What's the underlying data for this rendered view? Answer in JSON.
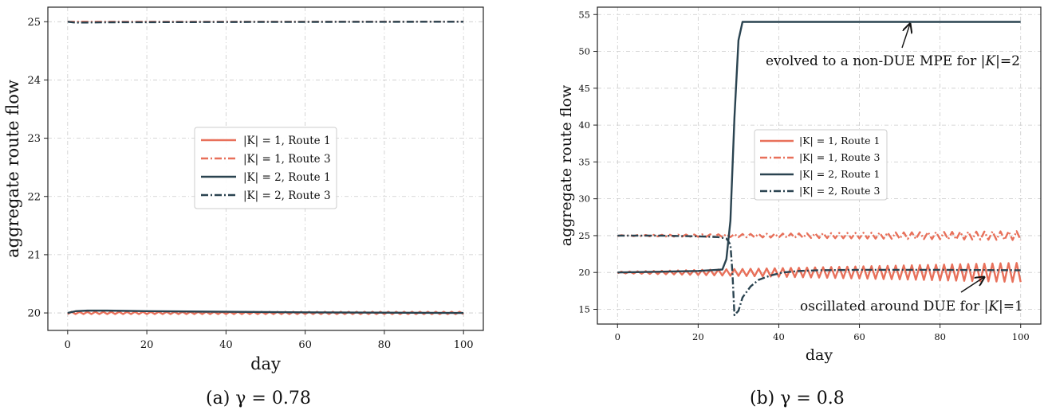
{
  "colors": {
    "orange": "#E8705A",
    "dark": "#2A4350",
    "grid": "#c9c9c9",
    "axis": "#222222"
  },
  "chart_data": [
    {
      "type": "line",
      "caption": "(a) γ = 0.78",
      "xlabel": "day",
      "ylabel": "aggregate route flow",
      "xlim": [
        -5,
        105
      ],
      "ylim": [
        19.7,
        25.25
      ],
      "xticks": [
        "0",
        "20",
        "40",
        "60",
        "80",
        "100"
      ],
      "yticks": [
        "20",
        "21",
        "22",
        "23",
        "24",
        "25"
      ],
      "grid": true,
      "legend_position": "center",
      "series": [
        {
          "name": "|K| = 1, Route 1",
          "color": "orange",
          "style": "solid",
          "summary": "oscillates tightly around 20.0 (amplitude ~0.02) for days 0–100",
          "base": 20.0,
          "amplitude": 0.02
        },
        {
          "name": "|K| = 1, Route 3",
          "color": "orange",
          "style": "dashdot",
          "summary": "flat at 25.0 for days 0–100",
          "base": 25.0,
          "amplitude": 0.0
        },
        {
          "name": "|K| = 2, Route 1",
          "color": "dark",
          "style": "solid",
          "x": [
            0,
            2,
            5,
            10,
            20,
            40,
            60,
            80,
            100
          ],
          "y": [
            20.0,
            20.03,
            20.04,
            20.04,
            20.03,
            20.02,
            20.01,
            20.005,
            20.0
          ]
        },
        {
          "name": "|K| = 2, Route 3",
          "color": "dark",
          "style": "dashdot",
          "x": [
            0,
            2,
            10,
            40,
            100
          ],
          "y": [
            25.0,
            24.985,
            24.99,
            24.995,
            25.0
          ]
        }
      ]
    },
    {
      "type": "line",
      "caption": "(b) γ = 0.8",
      "xlabel": "day",
      "ylabel": "aggregate route flow",
      "xlim": [
        -5,
        105
      ],
      "ylim": [
        13,
        56
      ],
      "xticks": [
        "0",
        "20",
        "40",
        "60",
        "80",
        "100"
      ],
      "yticks": [
        "15",
        "20",
        "25",
        "30",
        "35",
        "40",
        "45",
        "50",
        "55"
      ],
      "grid": true,
      "legend_position": "center-left",
      "annotations": [
        {
          "text_prefix": "evolved to a non-DUE MPE for |",
          "text_italic": "K",
          "text_suffix": "|=2",
          "arrow_to": [
            72,
            54
          ]
        },
        {
          "text_prefix": "oscillated around DUE for |",
          "text_italic": "K",
          "text_suffix": "|=1",
          "arrow_to": [
            91,
            19.5
          ]
        }
      ],
      "series": [
        {
          "name": "|K| = 1, Route 1",
          "color": "orange",
          "style": "solid",
          "summary": "oscillates around 20 with amplitude growing from ~0.1 at day 0 to ~1.3 at day 100",
          "base": 20.0,
          "amp_start": 0.1,
          "amp_end": 1.3
        },
        {
          "name": "|K| = 1, Route 3",
          "color": "orange",
          "style": "dashdot",
          "summary": "oscillates around 25 with amplitude growing from ~0.05 to ~0.6",
          "base": 25.0,
          "amp_start": 0.05,
          "amp_end": 0.6
        },
        {
          "name": "|K| = 2, Route 1",
          "color": "dark",
          "style": "solid",
          "x": [
            0,
            10,
            20,
            26,
            27,
            28,
            29,
            30,
            31,
            40,
            60,
            80,
            100
          ],
          "y": [
            20.0,
            20.1,
            20.2,
            20.4,
            21.8,
            27.0,
            41.0,
            51.5,
            54.0,
            54.0,
            54.0,
            54.0,
            54.0
          ]
        },
        {
          "name": "|K| = 2, Route 3",
          "color": "dark",
          "style": "dashdot",
          "x": [
            0,
            10,
            20,
            25,
            27,
            28,
            28.5,
            29,
            30,
            31,
            33,
            35,
            38,
            41,
            45,
            50,
            60,
            80,
            100
          ],
          "y": [
            25.0,
            25.0,
            24.9,
            24.8,
            24.6,
            23.8,
            20.0,
            14.2,
            14.8,
            16.6,
            18.1,
            19.0,
            19.6,
            20.0,
            20.2,
            20.3,
            20.35,
            20.35,
            20.3
          ]
        }
      ]
    }
  ]
}
